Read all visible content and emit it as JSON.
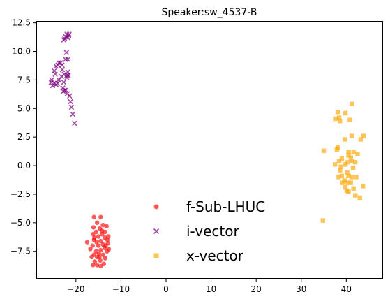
{
  "chart_data": {
    "type": "scatter",
    "title": "Speaker:sw_4537-B",
    "xlabel": "",
    "ylabel": "",
    "xlim": [
      -28.8,
      48.0
    ],
    "ylim": [
      -9.9,
      12.6
    ],
    "xticks": [
      -20,
      -10,
      0,
      10,
      20,
      30,
      40
    ],
    "xtick_labels": [
      "−20",
      "−10",
      "0",
      "10",
      "20",
      "30",
      "40"
    ],
    "yticks": [
      -7.5,
      -5.0,
      -2.5,
      0.0,
      2.5,
      5.0,
      7.5,
      10.0,
      12.5
    ],
    "ytick_labels": [
      "−7.5",
      "−5.0",
      "−2.5",
      "0.0",
      "2.5",
      "5.0",
      "7.5",
      "10.0",
      "12.5"
    ],
    "grid": false,
    "legend_position": "bottom-center",
    "series": [
      {
        "name": "f-Sub-LHUC",
        "marker": "circle",
        "color": "#ff0000",
        "points": [
          [
            -16.0,
            -4.5
          ],
          [
            -14.5,
            -4.5
          ],
          [
            -15.3,
            -5.0
          ],
          [
            -14.0,
            -5.2
          ],
          [
            -13.2,
            -5.3
          ],
          [
            -16.1,
            -5.4
          ],
          [
            -14.7,
            -5.5
          ],
          [
            -15.5,
            -5.8
          ],
          [
            -13.5,
            -5.8
          ],
          [
            -14.2,
            -6.0
          ],
          [
            -16.2,
            -6.0
          ],
          [
            -12.8,
            -6.2
          ],
          [
            -15.0,
            -6.2
          ],
          [
            -13.6,
            -6.3
          ],
          [
            -16.0,
            -6.5
          ],
          [
            -14.5,
            -6.6
          ],
          [
            -15.4,
            -6.7
          ],
          [
            -17.5,
            -6.7
          ],
          [
            -12.9,
            -6.8
          ],
          [
            -14.0,
            -6.9
          ],
          [
            -16.3,
            -7.0
          ],
          [
            -15.0,
            -7.0
          ],
          [
            -13.6,
            -7.2
          ],
          [
            -16.8,
            -7.3
          ],
          [
            -14.5,
            -7.4
          ],
          [
            -15.5,
            -7.5
          ],
          [
            -13.1,
            -7.5
          ],
          [
            -12.7,
            -7.3
          ],
          [
            -14.9,
            -7.7
          ],
          [
            -16.0,
            -7.8
          ],
          [
            -14.0,
            -7.8
          ],
          [
            -15.3,
            -8.0
          ],
          [
            -16.5,
            -8.0
          ],
          [
            -13.5,
            -8.1
          ],
          [
            -14.6,
            -8.3
          ],
          [
            -15.8,
            -8.4
          ],
          [
            -13.8,
            -8.6
          ],
          [
            -15.3,
            -8.7
          ],
          [
            -14.5,
            -8.8
          ],
          [
            -16.2,
            -8.7
          ],
          [
            -13.4,
            -7.0
          ],
          [
            -15.9,
            -6.3
          ],
          [
            -14.2,
            -5.7
          ],
          [
            -13.0,
            -6.5
          ],
          [
            -14.8,
            -8.0
          ]
        ]
      },
      {
        "name": "i-vector",
        "marker": "x",
        "color": "#800080",
        "points": [
          [
            -22.0,
            11.5
          ],
          [
            -21.6,
            11.4
          ],
          [
            -22.3,
            11.3
          ],
          [
            -21.8,
            11.2
          ],
          [
            -22.5,
            11.1
          ],
          [
            -22.7,
            11.0
          ],
          [
            -21.5,
            11.5
          ],
          [
            -22.1,
            9.9
          ],
          [
            -21.8,
            9.3
          ],
          [
            -22.3,
            9.3
          ],
          [
            -23.4,
            9.0
          ],
          [
            -23.8,
            9.0
          ],
          [
            -24.0,
            8.8
          ],
          [
            -24.4,
            8.7
          ],
          [
            -23.1,
            8.8
          ],
          [
            -24.8,
            8.3
          ],
          [
            -24.6,
            8.0
          ],
          [
            -23.0,
            8.4
          ],
          [
            -22.6,
            8.0
          ],
          [
            -21.8,
            8.2
          ],
          [
            -21.7,
            7.9
          ],
          [
            -22.0,
            7.7
          ],
          [
            -23.2,
            7.8
          ],
          [
            -23.8,
            7.5
          ],
          [
            -22.7,
            7.3
          ],
          [
            -25.4,
            7.5
          ],
          [
            -25.5,
            7.3
          ],
          [
            -24.8,
            7.2
          ],
          [
            -24.4,
            7.1
          ],
          [
            -25.2,
            7.0
          ],
          [
            -22.9,
            6.8
          ],
          [
            -22.5,
            6.6
          ],
          [
            -22.2,
            6.6
          ],
          [
            -21.9,
            6.3
          ],
          [
            -21.4,
            6.1
          ],
          [
            -21.2,
            5.6
          ],
          [
            -21.0,
            5.1
          ],
          [
            -20.7,
            4.5
          ],
          [
            -20.3,
            3.7
          ],
          [
            -22.0,
            7.9
          ],
          [
            -22.8,
            6.5
          ],
          [
            -24.1,
            7.2
          ]
        ]
      },
      {
        "name": "x-vector",
        "marker": "square",
        "color": "#ffa500",
        "points": [
          [
            41.2,
            5.4
          ],
          [
            38.1,
            4.7
          ],
          [
            39.8,
            4.6
          ],
          [
            38.4,
            4.2
          ],
          [
            37.7,
            4.1
          ],
          [
            38.6,
            3.9
          ],
          [
            40.8,
            4.0
          ],
          [
            41.2,
            2.6
          ],
          [
            39.7,
            2.3
          ],
          [
            43.8,
            2.6
          ],
          [
            43.2,
            2.3
          ],
          [
            38.2,
            1.6
          ],
          [
            37.9,
            1.4
          ],
          [
            35.0,
            1.3
          ],
          [
            40.5,
            1.2
          ],
          [
            41.6,
            1.2
          ],
          [
            42.5,
            1.0
          ],
          [
            40.5,
            0.9
          ],
          [
            41.0,
            0.7
          ],
          [
            39.0,
            0.6
          ],
          [
            38.4,
            0.4
          ],
          [
            40.3,
            0.3
          ],
          [
            41.2,
            0.4
          ],
          [
            42.0,
            0.3
          ],
          [
            39.8,
            0.1
          ],
          [
            37.5,
            0.1
          ],
          [
            38.8,
            -0.1
          ],
          [
            41.5,
            -0.2
          ],
          [
            38.6,
            -0.4
          ],
          [
            40.2,
            -0.6
          ],
          [
            40.5,
            -0.9
          ],
          [
            39.0,
            -0.9
          ],
          [
            38.3,
            -1.0
          ],
          [
            41.2,
            -1.0
          ],
          [
            42.2,
            -1.0
          ],
          [
            39.6,
            -1.3
          ],
          [
            40.3,
            -1.5
          ],
          [
            41.0,
            -1.5
          ],
          [
            39.2,
            -1.5
          ],
          [
            39.8,
            -1.9
          ],
          [
            43.7,
            -1.8
          ],
          [
            41.6,
            -2.0
          ],
          [
            40.1,
            -2.2
          ],
          [
            40.5,
            -2.3
          ],
          [
            42.0,
            -2.6
          ],
          [
            43.0,
            -2.8
          ],
          [
            34.8,
            -4.8
          ]
        ]
      }
    ]
  }
}
